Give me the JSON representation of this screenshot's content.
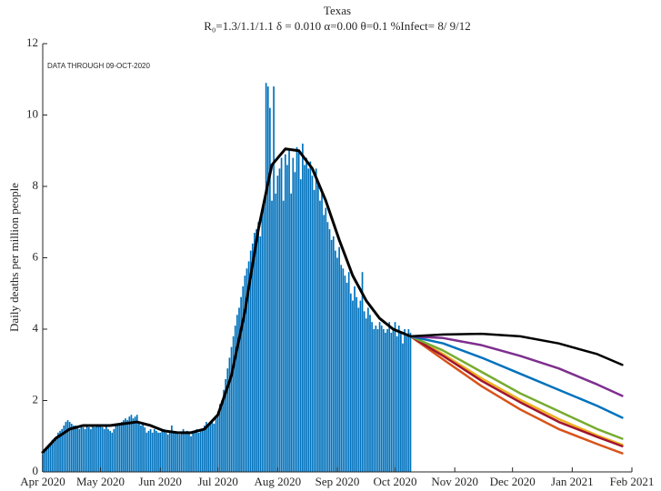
{
  "chart_data": {
    "type": "bar",
    "title": "Texas",
    "subtitle": "R₀=1.3/1.1/1.1  δ = 0.010  α=0.00  θ=0.1  %Infect= 8/ 9/12",
    "annotation": "DATA THROUGH 09-OCT-2020",
    "ylabel": "Daily deaths per million people",
    "xlim": [
      92,
      398
    ],
    "xticks": [
      {
        "value": 92,
        "label": "Apr 2020"
      },
      {
        "value": 122,
        "label": "May 2020"
      },
      {
        "value": 153,
        "label": "Jun 2020"
      },
      {
        "value": 183,
        "label": "Jul 2020"
      },
      {
        "value": 214,
        "label": "Aug 2020"
      },
      {
        "value": 245,
        "label": "Sep 2020"
      },
      {
        "value": 275,
        "label": "Oct 2020"
      },
      {
        "value": 306,
        "label": "Nov 2020"
      },
      {
        "value": 336,
        "label": "Dec 2020"
      },
      {
        "value": 367,
        "label": "Jan 2021"
      },
      {
        "value": 398,
        "label": "Feb 2021"
      }
    ],
    "ylim": [
      0,
      12
    ],
    "yticks": [
      0,
      2,
      4,
      6,
      8,
      10,
      12
    ],
    "series": [
      {
        "type": "bar",
        "color": "#0072bd",
        "x": [
          92,
          93,
          94,
          95,
          96,
          97,
          98,
          99,
          100,
          101,
          102,
          103,
          104,
          105,
          106,
          107,
          108,
          109,
          110,
          111,
          112,
          113,
          114,
          115,
          116,
          117,
          118,
          119,
          120,
          121,
          122,
          123,
          124,
          125,
          126,
          127,
          128,
          129,
          130,
          131,
          132,
          133,
          134,
          135,
          136,
          137,
          138,
          139,
          140,
          141,
          142,
          143,
          144,
          145,
          146,
          147,
          148,
          149,
          150,
          151,
          152,
          153,
          154,
          155,
          156,
          157,
          158,
          159,
          160,
          161,
          162,
          163,
          164,
          165,
          166,
          167,
          168,
          169,
          170,
          171,
          172,
          173,
          174,
          175,
          176,
          177,
          178,
          179,
          180,
          181,
          182,
          183,
          184,
          185,
          186,
          187,
          188,
          189,
          190,
          191,
          192,
          193,
          194,
          195,
          196,
          197,
          198,
          199,
          200,
          201,
          202,
          203,
          204,
          205,
          206,
          207,
          208,
          209,
          210,
          211,
          212,
          213,
          214,
          215,
          216,
          217,
          218,
          219,
          220,
          221,
          222,
          223,
          224,
          225,
          226,
          227,
          228,
          229,
          230,
          231,
          232,
          233,
          234,
          235,
          236,
          237,
          238,
          239,
          240,
          241,
          242,
          243,
          244,
          245,
          246,
          247,
          248,
          249,
          250,
          251,
          252,
          253,
          254,
          255,
          256,
          257,
          258,
          259,
          260,
          261,
          262,
          263,
          264,
          265,
          266,
          267,
          268,
          269,
          270,
          271,
          272,
          273,
          274,
          275,
          276,
          277,
          278,
          279,
          280,
          281,
          282,
          283
        ],
        "values": [
          0.5,
          0.6,
          0.65,
          0.75,
          0.8,
          0.9,
          0.95,
          1.0,
          1.1,
          1.15,
          1.2,
          1.3,
          1.4,
          1.45,
          1.4,
          1.35,
          1.3,
          1.3,
          1.25,
          1.2,
          1.3,
          1.25,
          1.2,
          1.3,
          1.25,
          1.2,
          1.3,
          1.25,
          1.3,
          1.3,
          1.3,
          1.25,
          1.2,
          1.3,
          1.2,
          1.15,
          1.1,
          1.2,
          1.3,
          1.3,
          1.35,
          1.4,
          1.45,
          1.5,
          1.45,
          1.55,
          1.6,
          1.5,
          1.55,
          1.6,
          1.4,
          1.3,
          1.35,
          1.25,
          1.1,
          1.15,
          1.2,
          1.1,
          1.2,
          1.15,
          1.1,
          1.1,
          1.15,
          1.2,
          1.1,
          1.05,
          1.1,
          1.3,
          1.15,
          1.1,
          1.1,
          1.05,
          1.1,
          1.2,
          1.1,
          1.15,
          1.1,
          1.0,
          1.1,
          1.15,
          1.2,
          1.1,
          1.15,
          1.2,
          1.3,
          1.4,
          1.35,
          1.4,
          1.4,
          1.35,
          1.5,
          1.7,
          1.9,
          2.0,
          2.3,
          2.6,
          2.9,
          3.2,
          3.5,
          3.8,
          4.1,
          4.4,
          4.6,
          4.9,
          5.2,
          5.5,
          5.7,
          5.9,
          6.2,
          6.4,
          6.7,
          6.8,
          7.0,
          6.6,
          7.3,
          7.6,
          10.9,
          10.8,
          10.2,
          7.6,
          10.8,
          7.8,
          8.3,
          8.5,
          8.8,
          7.6,
          8.9,
          8.6,
          9.0,
          7.8,
          8.8,
          8.4,
          9.1,
          9.0,
          8.2,
          9.2,
          8.6,
          8.8,
          8.5,
          8.7,
          8.3,
          7.9,
          8.5,
          8.1,
          7.6,
          7.8,
          7.2,
          7.4,
          7.0,
          6.8,
          6.5,
          6.6,
          6.2,
          6.0,
          6.3,
          5.8,
          5.7,
          5.5,
          5.3,
          5.6,
          5.0,
          4.8,
          5.2,
          4.9,
          4.6,
          4.8,
          5.6,
          4.5,
          4.3,
          4.6,
          4.4,
          4.2,
          4.0,
          4.1,
          4.0,
          4.2,
          4.1,
          4.0,
          3.9,
          4.0,
          4.2,
          3.9,
          4.0,
          4.2,
          3.8,
          4.1,
          3.9,
          3.6,
          4.0,
          3.8,
          4.0,
          3.9
        ]
      },
      {
        "type": "line",
        "color": "#000000",
        "width": 3,
        "x": [
          92,
          99,
          106,
          113,
          120,
          127,
          134,
          141,
          148,
          155,
          162,
          169,
          176,
          183,
          190,
          197,
          204,
          211,
          218,
          225,
          232,
          239,
          246,
          253,
          260,
          267,
          274,
          283
        ],
        "values": [
          0.55,
          0.95,
          1.2,
          1.3,
          1.3,
          1.3,
          1.35,
          1.4,
          1.3,
          1.15,
          1.1,
          1.1,
          1.2,
          1.6,
          2.7,
          4.5,
          6.8,
          8.6,
          9.05,
          9.0,
          8.5,
          7.6,
          6.5,
          5.5,
          4.8,
          4.3,
          4.0,
          3.8
        ]
      },
      {
        "type": "line",
        "color": "#d95319",
        "width": 2.5,
        "x": [
          283,
          300,
          320,
          340,
          360,
          380,
          393
        ],
        "values": [
          3.8,
          3.15,
          2.4,
          1.75,
          1.2,
          0.78,
          0.52
        ]
      },
      {
        "type": "line",
        "color": "#edb120",
        "width": 2.5,
        "x": [
          283,
          300,
          320,
          340,
          360,
          380,
          393
        ],
        "values": [
          3.8,
          3.3,
          2.62,
          2.02,
          1.48,
          1.02,
          0.76
        ]
      },
      {
        "type": "line",
        "color": "#a2142f",
        "width": 2.5,
        "x": [
          283,
          300,
          320,
          340,
          360,
          380,
          393
        ],
        "values": [
          3.8,
          3.25,
          2.55,
          1.95,
          1.4,
          0.98,
          0.72
        ]
      },
      {
        "type": "line",
        "color": "#77ac30",
        "width": 2.5,
        "x": [
          283,
          300,
          320,
          340,
          360,
          380,
          393
        ],
        "values": [
          3.8,
          3.4,
          2.8,
          2.2,
          1.7,
          1.2,
          0.93
        ]
      },
      {
        "type": "line",
        "color": "#0072bd",
        "width": 2.5,
        "x": [
          283,
          300,
          320,
          340,
          360,
          380,
          393
        ],
        "values": [
          3.8,
          3.6,
          3.2,
          2.75,
          2.3,
          1.85,
          1.52
        ]
      },
      {
        "type": "line",
        "color": "#7e2f8e",
        "width": 2.5,
        "x": [
          283,
          300,
          320,
          340,
          360,
          380,
          393
        ],
        "values": [
          3.8,
          3.75,
          3.55,
          3.25,
          2.9,
          2.45,
          2.13
        ]
      },
      {
        "type": "line",
        "color": "#000000",
        "width": 2.5,
        "x": [
          283,
          300,
          320,
          340,
          360,
          380,
          393
        ],
        "values": [
          3.8,
          3.85,
          3.87,
          3.8,
          3.6,
          3.3,
          3.0
        ]
      }
    ]
  }
}
